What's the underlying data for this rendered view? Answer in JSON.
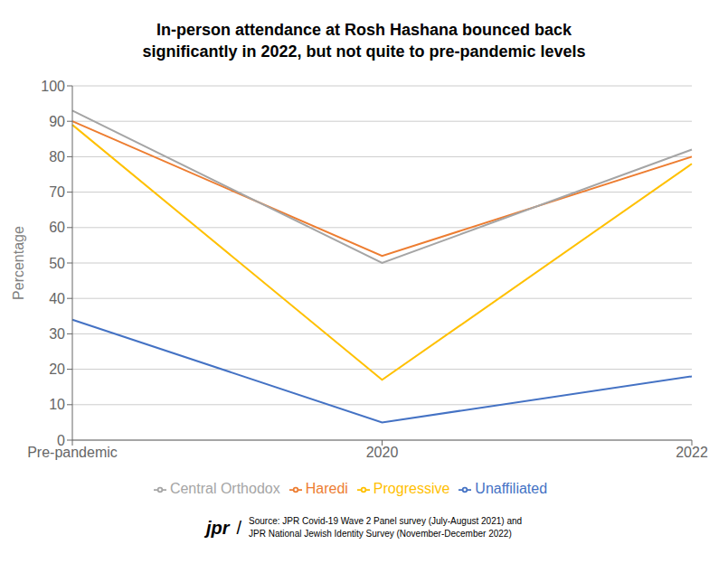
{
  "chart_data": {
    "type": "line",
    "title": "In-person attendance at Rosh Hashana bounced back\nsignificantly in 2022, but not quite to pre-pandemic levels",
    "categories": [
      "Pre-pandemic",
      "2020",
      "2022"
    ],
    "series": [
      {
        "name": "Unaffiliated",
        "color": "#4472C4",
        "values": [
          34,
          5,
          18
        ]
      },
      {
        "name": "Haredi",
        "color": "#ED7D31",
        "values": [
          90,
          52,
          80
        ]
      },
      {
        "name": "Central Orthodox",
        "color": "#A5A5A5",
        "values": [
          93,
          50,
          82
        ]
      },
      {
        "name": "Progressive",
        "color": "#FFC000",
        "values": [
          89,
          17,
          78
        ]
      }
    ],
    "ylabel": "Percentage",
    "ylim": [
      0,
      100
    ],
    "yticks": [
      0,
      10,
      20,
      30,
      40,
      50,
      60,
      70,
      80,
      90,
      100
    ],
    "grid": true,
    "legend": "bottom",
    "marker": "none",
    "annotations": [
      "jpr",
      "/",
      "Source: JPR Covid-19 Wave 2 Panel survey (July-August 2021) and\nJPR National Jewish Identity Survey (November-December 2022)"
    ]
  }
}
